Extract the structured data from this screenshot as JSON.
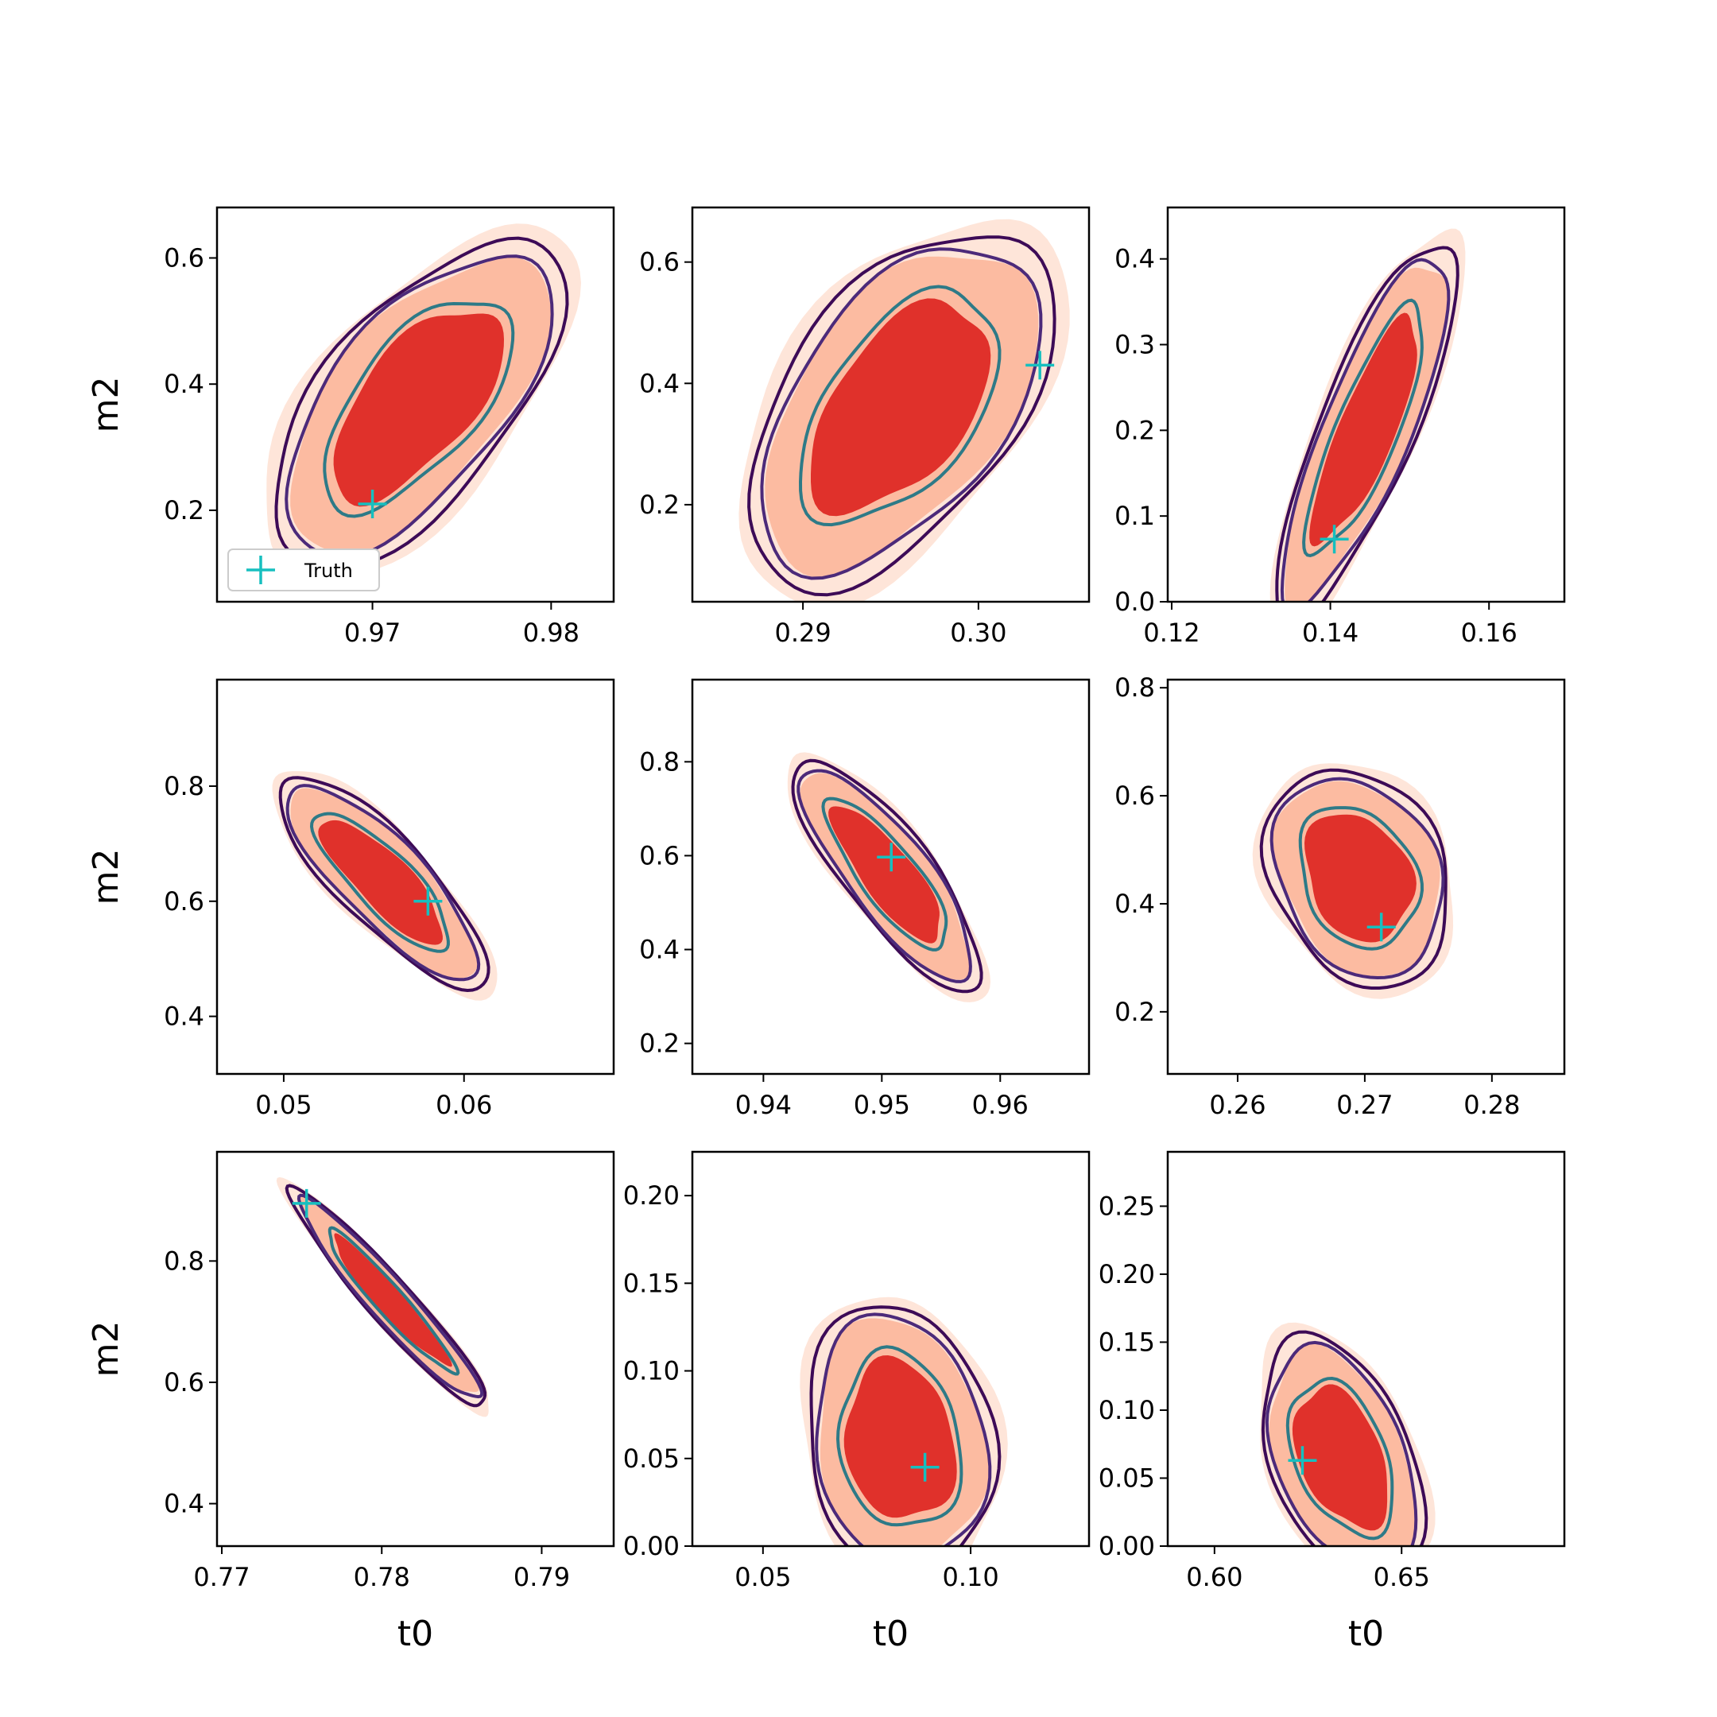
{
  "figure": {
    "colors": {
      "fill_outer": "#fee5d9",
      "fill_mid": "#fcbba1",
      "fill_inner": "#e0312b",
      "line_outer": "#3d0b57",
      "line_mid": "#4c2a7a",
      "line_inner": "#2e7a87",
      "truth_marker": "#17bfbf"
    },
    "legend": {
      "label": "Truth",
      "location": "lower-left",
      "panel": 0
    }
  },
  "chart_data": [
    {
      "type": "contour",
      "xlabel": "",
      "ylabel": "m2",
      "xlim": [
        0.9613,
        0.9835
      ],
      "ylim": [
        0.055,
        0.68
      ],
      "xticks": [
        0.97,
        0.98
      ],
      "xticklabels": [
        "0.97",
        "0.98"
      ],
      "yticks": [
        0.2,
        0.4,
        0.6
      ],
      "yticklabels": [
        "0.2",
        "0.4",
        "0.6"
      ],
      "center": [
        0.9725,
        0.37
      ],
      "spread": [
        0.0052,
        0.165
      ],
      "rho": 0.55,
      "truth": [
        0.97,
        0.21
      ]
    },
    {
      "type": "contour",
      "xlabel": "",
      "ylabel": "",
      "xlim": [
        0.2837,
        0.3063
      ],
      "ylim": [
        0.04,
        0.69
      ],
      "xticks": [
        0.29,
        0.3
      ],
      "xticklabels": [
        "0.29",
        "0.30"
      ],
      "yticks": [
        0.2,
        0.4,
        0.6
      ],
      "yticklabels": [
        "0.2",
        "0.4",
        "0.6"
      ],
      "center": [
        0.2955,
        0.36
      ],
      "spread": [
        0.0055,
        0.185
      ],
      "rho": 0.45,
      "truth": [
        0.3035,
        0.43
      ]
    },
    {
      "type": "contour",
      "xlabel": "",
      "ylabel": "",
      "xlim": [
        0.1195,
        0.1695
      ],
      "ylim": [
        0.0,
        0.46
      ],
      "xticks": [
        0.12,
        0.14,
        0.16
      ],
      "xticklabels": [
        "0.12",
        "0.14",
        "0.16"
      ],
      "yticks": [
        0.0,
        0.1,
        0.2,
        0.3,
        0.4
      ],
      "yticklabels": [
        "0.0",
        "0.1",
        "0.2",
        "0.3",
        "0.4"
      ],
      "center": [
        0.1445,
        0.2
      ],
      "spread": [
        0.0075,
        0.145
      ],
      "rho": 0.72,
      "truth": [
        0.1405,
        0.073
      ]
    },
    {
      "type": "contour",
      "xlabel": "",
      "ylabel": "m2",
      "xlim": [
        0.0463,
        0.0683
      ],
      "ylim": [
        0.3,
        0.985
      ],
      "xticks": [
        0.05,
        0.06
      ],
      "xticklabels": [
        "0.05",
        "0.06"
      ],
      "yticks": [
        0.4,
        0.6,
        0.8
      ],
      "yticklabels": [
        "0.4",
        "0.6",
        "0.8"
      ],
      "center": [
        0.0555,
        0.635
      ],
      "spread": [
        0.0038,
        0.12
      ],
      "rho": -0.72,
      "truth": [
        0.058,
        0.6
      ]
    },
    {
      "type": "contour",
      "xlabel": "",
      "ylabel": "",
      "xlim": [
        0.934,
        0.9675
      ],
      "ylim": [
        0.135,
        0.975
      ],
      "xticks": [
        0.94,
        0.95,
        0.96
      ],
      "xticklabels": [
        "0.94",
        "0.95",
        "0.96"
      ],
      "yticks": [
        0.2,
        0.4,
        0.6,
        0.8
      ],
      "yticklabels": [
        "0.2",
        "0.4",
        "0.6",
        "0.8"
      ],
      "center": [
        0.9505,
        0.56
      ],
      "spread": [
        0.0052,
        0.16
      ],
      "rho": -0.72,
      "truth": [
        0.9508,
        0.597
      ]
    },
    {
      "type": "contour",
      "xlabel": "",
      "ylabel": "",
      "xlim": [
        0.2545,
        0.2857
      ],
      "ylim": [
        0.085,
        0.815
      ],
      "xticks": [
        0.26,
        0.27,
        0.28
      ],
      "xticklabels": [
        "0.26",
        "0.27",
        "0.28"
      ],
      "yticks": [
        0.2,
        0.4,
        0.6,
        0.8
      ],
      "yticklabels": [
        "0.2",
        "0.4",
        "0.6",
        "0.8"
      ],
      "center": [
        0.2695,
        0.45
      ],
      "spread": [
        0.0045,
        0.125
      ],
      "rho": -0.2,
      "truth": [
        0.2713,
        0.357
      ]
    },
    {
      "type": "contour",
      "xlabel": "t0",
      "ylabel": "m2",
      "xlim": [
        0.7697,
        0.7945
      ],
      "ylim": [
        0.33,
        0.98
      ],
      "xticks": [
        0.77,
        0.78,
        0.79
      ],
      "xticklabels": [
        "0.77",
        "0.78",
        "0.79"
      ],
      "yticks": [
        0.4,
        0.6,
        0.8
      ],
      "yticklabels": [
        "0.4",
        "0.6",
        "0.8"
      ],
      "center": [
        0.7805,
        0.735
      ],
      "spread": [
        0.0042,
        0.12
      ],
      "rho": -0.86,
      "truth": [
        0.7753,
        0.895
      ]
    },
    {
      "type": "contour",
      "xlabel": "t0",
      "ylabel": "",
      "xlim": [
        0.033,
        0.1285
      ],
      "ylim": [
        0.0,
        0.225
      ],
      "xticks": [
        0.05,
        0.1
      ],
      "xticklabels": [
        "0.05",
        "0.10"
      ],
      "yticks": [
        0.0,
        0.05,
        0.1,
        0.15,
        0.2
      ],
      "yticklabels": [
        "0.00",
        "0.05",
        "0.10",
        "0.15",
        "0.20"
      ],
      "center": [
        0.083,
        0.06
      ],
      "spread": [
        0.014,
        0.048
      ],
      "rho": -0.12,
      "truth": [
        0.089,
        0.045
      ]
    },
    {
      "type": "contour",
      "xlabel": "t0",
      "ylabel": "",
      "xlim": [
        0.5875,
        0.6935
      ],
      "ylim": [
        0.0,
        0.29
      ],
      "xticks": [
        0.6,
        0.65
      ],
      "xticklabels": [
        "0.60",
        "0.65"
      ],
      "yticks": [
        0.0,
        0.05,
        0.1,
        0.15,
        0.2,
        0.25
      ],
      "yticklabels": [
        "0.00",
        "0.05",
        "0.10",
        "0.15",
        "0.20",
        "0.25"
      ],
      "center": [
        0.634,
        0.065
      ],
      "spread": [
        0.0135,
        0.055
      ],
      "rho": -0.35,
      "truth": [
        0.6235,
        0.063
      ]
    }
  ]
}
